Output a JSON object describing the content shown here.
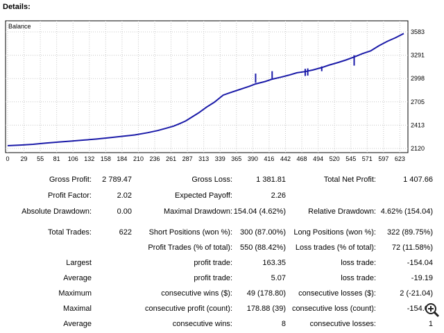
{
  "header": {
    "title": "Details:"
  },
  "chart_data": {
    "type": "line",
    "title": "Balance",
    "xlabel": "",
    "ylabel": "",
    "x_ticks": [
      "0",
      "29",
      "55",
      "81",
      "106",
      "132",
      "158",
      "184",
      "210",
      "236",
      "261",
      "287",
      "313",
      "339",
      "365",
      "390",
      "416",
      "442",
      "468",
      "494",
      "520",
      "545",
      "571",
      "597",
      "623"
    ],
    "y_ticks": [
      "3583",
      "3291",
      "2998",
      "2705",
      "2413",
      "2120"
    ],
    "xlim": [
      0,
      640
    ],
    "ylim": [
      2120,
      3583
    ],
    "grid": true,
    "series": [
      {
        "color": "#1a1aa8",
        "x": [
          0,
          20,
          40,
          60,
          80,
          100,
          120,
          140,
          160,
          180,
          200,
          220,
          236,
          250,
          261,
          270,
          280,
          287,
          300,
          313,
          325,
          339,
          350,
          365,
          380,
          390,
          405,
          416,
          430,
          442,
          455,
          468,
          480,
          494,
          505,
          520,
          532,
          545,
          558,
          571,
          584,
          597,
          610,
          623
        ],
        "y": [
          2155,
          2163,
          2172,
          2188,
          2200,
          2212,
          2225,
          2238,
          2255,
          2272,
          2290,
          2318,
          2345,
          2375,
          2400,
          2430,
          2465,
          2500,
          2565,
          2640,
          2700,
          2790,
          2820,
          2860,
          2900,
          2930,
          2960,
          2990,
          3015,
          3040,
          3070,
          3085,
          3105,
          3135,
          3165,
          3200,
          3230,
          3268,
          3310,
          3345,
          3410,
          3465,
          3510,
          3563
        ]
      },
      {
        "color": "#1a1aa8",
        "note_dips": "",
        "x": [],
        "y": []
      }
    ]
  },
  "stats": {
    "row1": {
      "a_label": "Gross Profit:",
      "a_value": "2 789.47",
      "b_label": "Gross Loss:",
      "b_value": "1 381.81",
      "c_label": "Total Net Profit:",
      "c_value": "1 407.66"
    },
    "row2": {
      "a_label": "Profit Factor:",
      "a_value": "2.02",
      "b_label": "Expected Payoff:",
      "b_value": "2.26"
    },
    "row3": {
      "a_label": "Absolute Drawdown:",
      "a_value": "0.00",
      "b_label": "Maximal Drawdown:",
      "b_value": "154.04 (4.62%)",
      "c_label": "Relative Drawdown:",
      "c_value": "4.62% (154.04)"
    },
    "row4": {
      "a_label": "Total Trades:",
      "a_value": "622",
      "b_label": "Short Positions (won %):",
      "b_value": "300 (87.00%)",
      "c_label": "Long Positions (won %):",
      "c_value": "322 (89.75%)"
    },
    "row5": {
      "b_label": "Profit Trades (% of total):",
      "b_value": "550 (88.42%)",
      "c_label": "Loss trades (% of total):",
      "c_value": "72 (11.58%)"
    },
    "row6": {
      "a_label": "Largest",
      "b_label": "profit trade:",
      "b_value": "163.35",
      "c_label": "loss trade:",
      "c_value": "-154.04"
    },
    "row7": {
      "a_label": "Average",
      "b_label": "profit trade:",
      "b_value": "5.07",
      "c_label": "loss trade:",
      "c_value": "-19.19"
    },
    "row8": {
      "a_label": "Maximum",
      "b_label": "consecutive wins ($):",
      "b_value": "49 (178.80)",
      "c_label": "consecutive losses ($):",
      "c_value": "2 (-21.04)"
    },
    "row9": {
      "a_label": "Maximal",
      "b_label": "consecutive profit (count):",
      "b_value": "178.88 (39)",
      "c_label": "consecutive loss (count):",
      "c_value": "-154.04"
    },
    "row10": {
      "a_label": "Average",
      "b_label": "consecutive wins:",
      "b_value": "8",
      "c_label": "consecutive losses:",
      "c_value": "1"
    }
  },
  "icons": {
    "zoom": "zoom-in-icon"
  }
}
